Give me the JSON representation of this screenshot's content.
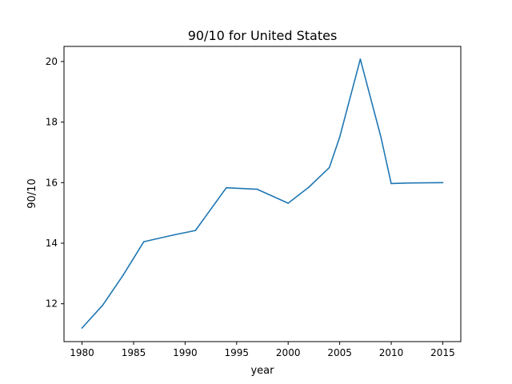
{
  "chart_data": {
    "type": "line",
    "title": "90/10 for United States",
    "xlabel": "year",
    "ylabel": "90/10",
    "xlim": [
      1978.25,
      2016.75
    ],
    "ylim": [
      10.75,
      20.5
    ],
    "xticks": [
      1980,
      1985,
      1990,
      1995,
      2000,
      2005,
      2010,
      2015
    ],
    "yticks": [
      12,
      14,
      16,
      18,
      20
    ],
    "grid": false,
    "series": [
      {
        "color": "#1f77b4",
        "x": [
          1980,
          1982,
          1984,
          1986,
          1989,
          1991,
          1994,
          1997,
          2000,
          2002,
          2004,
          2005,
          2007,
          2009,
          2010,
          2012,
          2015
        ],
        "y": [
          11.2,
          11.95,
          12.95,
          14.05,
          14.28,
          14.42,
          15.83,
          15.78,
          15.32,
          15.85,
          16.5,
          17.5,
          20.08,
          17.5,
          15.97,
          15.99,
          16.0
        ]
      }
    ]
  }
}
